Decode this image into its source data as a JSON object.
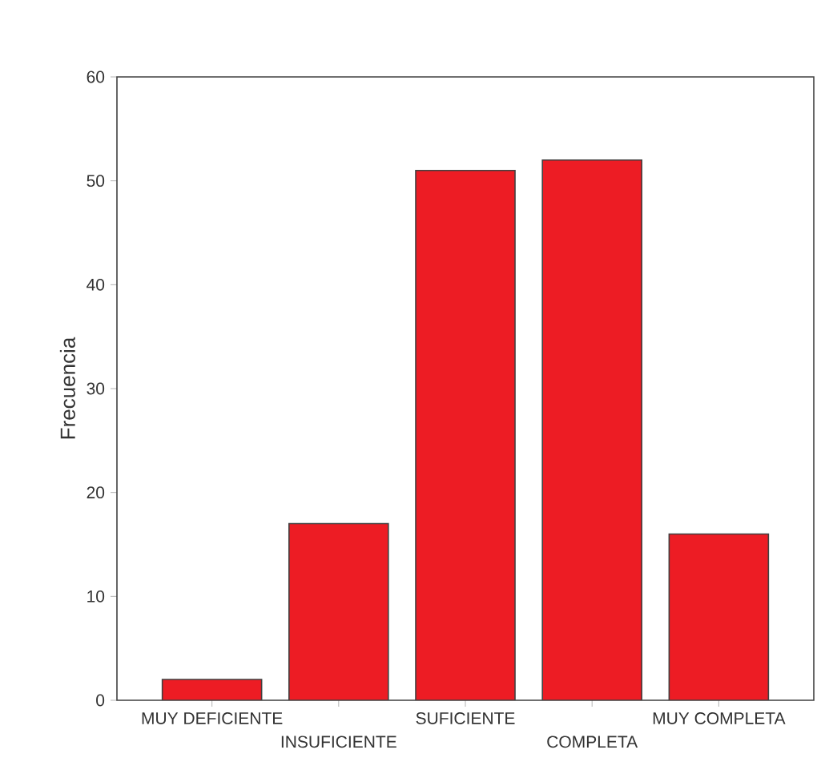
{
  "chart_data": {
    "type": "bar",
    "ylabel": "Frecuencia",
    "categories": [
      "MUY DEFICIENTE",
      "INSUFICIENTE",
      "SUFICIENTE",
      "COMPLETA",
      "MUY COMPLETA"
    ],
    "values": [
      2,
      17,
      51,
      52,
      16
    ],
    "color": "#ed1c24",
    "ylim": [
      0,
      60
    ],
    "yticks": [
      0,
      10,
      20,
      30,
      40,
      50,
      60
    ]
  }
}
